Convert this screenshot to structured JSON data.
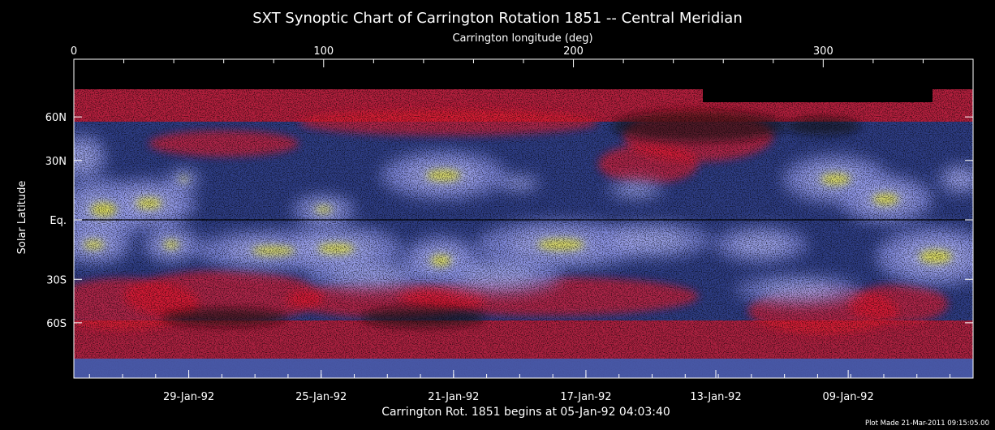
{
  "chart_data": {
    "type": "heatmap",
    "title": "SXT Synoptic Chart of Carrington Rotation 1851 -- Central Meridian",
    "top_axis": {
      "label": "Carrington longitude (deg)",
      "range": [
        0,
        360
      ],
      "ticks": [
        {
          "value": 0,
          "label": "0"
        },
        {
          "value": 100,
          "label": "100"
        },
        {
          "value": 200,
          "label": "200"
        },
        {
          "value": 300,
          "label": "300"
        }
      ]
    },
    "y_axis": {
      "label": "Solar Latitude",
      "ticks": [
        {
          "value": 60,
          "label": "60N"
        },
        {
          "value": 30,
          "label": "30N"
        },
        {
          "value": 0,
          "label": "Eq."
        },
        {
          "value": -30,
          "label": "30S"
        },
        {
          "value": -60,
          "label": "60S"
        }
      ],
      "scale": "sine-latitude"
    },
    "bottom_axis": {
      "label": "Carrington Rot. 1851 begins at 05-Jan-92 04:03:40",
      "ticks": [
        {
          "longitude": 46,
          "label": "29-Jan-92"
        },
        {
          "longitude": 99,
          "label": "25-Jan-92"
        },
        {
          "longitude": 152,
          "label": "21-Jan-92"
        },
        {
          "longitude": 205,
          "label": "17-Jan-92"
        },
        {
          "longitude": 257,
          "label": "13-Jan-92"
        },
        {
          "longitude": 310,
          "label": "09-Jan-92"
        }
      ]
    },
    "footer": "Plot Made 21-Mar-2011 09:15:05.00",
    "colors": {
      "background": "#000000",
      "dark_blue": "#2e3d84",
      "medium_blue": "#4a5aa8",
      "lavender": "#8a92e6",
      "bright_lavender": "#b4b8f2",
      "red": "#e01a2c",
      "yellow": "#e8e63a"
    },
    "bright_regions": [
      {
        "lon": 3,
        "lat": 32,
        "w": 16,
        "h": 28,
        "level": 0.6
      },
      {
        "lon": 12,
        "lat": 5,
        "w": 30,
        "h": 38,
        "level": 0.8
      },
      {
        "lon": 30,
        "lat": 8,
        "w": 30,
        "h": 30,
        "level": 0.85
      },
      {
        "lon": 44,
        "lat": 20,
        "w": 10,
        "h": 12,
        "level": 0.9
      },
      {
        "lon": 39,
        "lat": -12,
        "w": 18,
        "h": 22,
        "level": 0.75
      },
      {
        "lon": 8,
        "lat": -12,
        "w": 24,
        "h": 24,
        "level": 0.7
      },
      {
        "lon": 100,
        "lat": 5,
        "w": 20,
        "h": 18,
        "level": 0.8
      },
      {
        "lon": 80,
        "lat": -15,
        "w": 50,
        "h": 25,
        "level": 0.7
      },
      {
        "lon": 105,
        "lat": -14,
        "w": 42,
        "h": 28,
        "level": 0.72
      },
      {
        "lon": 118,
        "lat": -28,
        "w": 40,
        "h": 18,
        "level": 0.5
      },
      {
        "lon": 148,
        "lat": 22,
        "w": 40,
        "h": 30,
        "level": 0.75
      },
      {
        "lon": 178,
        "lat": 18,
        "w": 14,
        "h": 10,
        "level": 0.6
      },
      {
        "lon": 147,
        "lat": -20,
        "w": 24,
        "h": 30,
        "level": 0.85
      },
      {
        "lon": 170,
        "lat": -28,
        "w": 40,
        "h": 22,
        "level": 0.55
      },
      {
        "lon": 195,
        "lat": -12,
        "w": 54,
        "h": 30,
        "level": 0.7
      },
      {
        "lon": 230,
        "lat": -10,
        "w": 40,
        "h": 22,
        "level": 0.6
      },
      {
        "lon": 275,
        "lat": -12,
        "w": 30,
        "h": 22,
        "level": 0.55
      },
      {
        "lon": 305,
        "lat": 20,
        "w": 34,
        "h": 30,
        "level": 0.72
      },
      {
        "lon": 325,
        "lat": 10,
        "w": 30,
        "h": 30,
        "level": 0.75
      },
      {
        "lon": 345,
        "lat": -18,
        "w": 38,
        "h": 36,
        "level": 0.85
      },
      {
        "lon": 355,
        "lat": 20,
        "w": 14,
        "h": 18,
        "level": 0.65
      },
      {
        "lon": 290,
        "lat": -36,
        "w": 40,
        "h": 18,
        "level": 0.45
      },
      {
        "lon": 225,
        "lat": 15,
        "w": 18,
        "h": 12,
        "level": 0.4
      }
    ]
  }
}
